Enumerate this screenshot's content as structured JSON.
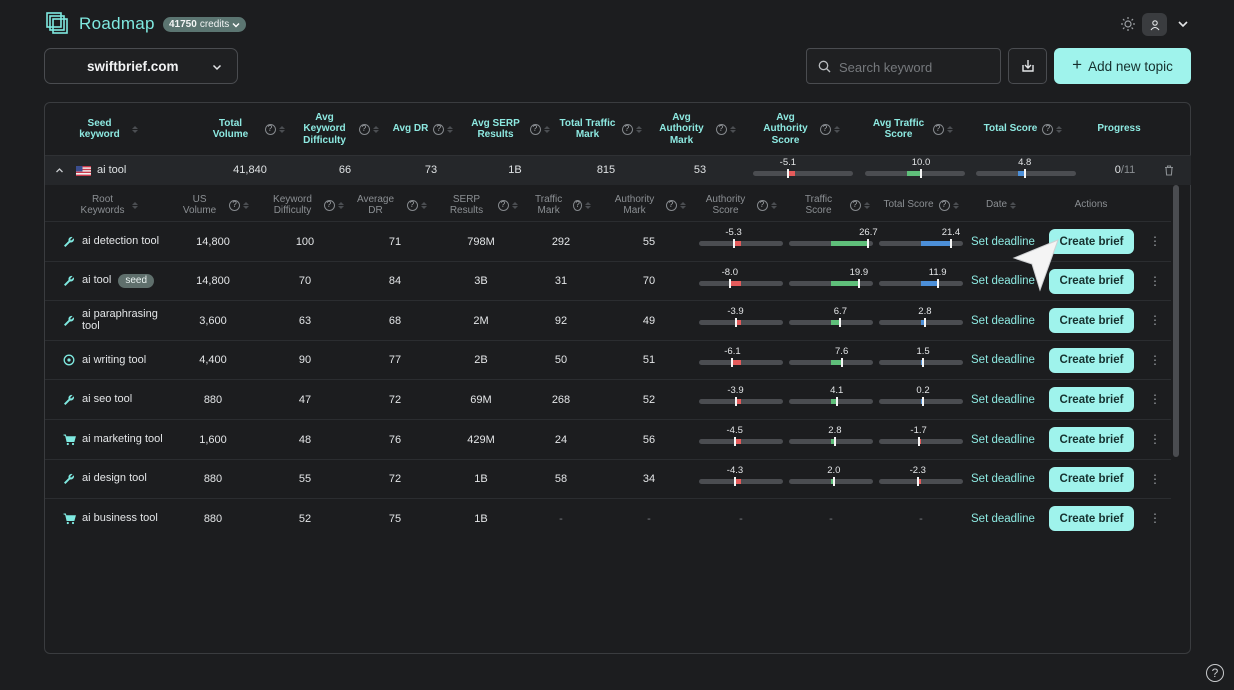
{
  "header": {
    "brand": "Roadmap",
    "credits_value": "41750",
    "credits_unit": "credits",
    "domain": "swiftbrief.com",
    "search_placeholder": "Search keyword",
    "add_topic_label": "Add new topic"
  },
  "columns": [
    {
      "label": "Seed keyword",
      "help": false
    },
    {
      "label": "Total Volume",
      "help": true
    },
    {
      "label": "Avg Keyword Difficulty",
      "help": true
    },
    {
      "label": "Avg DR",
      "help": true
    },
    {
      "label": "Avg SERP Results",
      "help": true
    },
    {
      "label": "Total Traffic Mark",
      "help": true
    },
    {
      "label": "Avg Authority Mark",
      "help": true
    },
    {
      "label": "Avg Authority Score",
      "help": true
    },
    {
      "label": "Avg Traffic Score",
      "help": true
    },
    {
      "label": "Total Score",
      "help": true
    },
    {
      "label": "Progress",
      "help": false
    }
  ],
  "group": {
    "seed": "ai tool",
    "total_volume": "41,840",
    "avg_kd": "66",
    "avg_dr": "73",
    "avg_serp": "1B",
    "traffic_mark": "815",
    "authority_mark": "53",
    "authority_score": -5.1,
    "traffic_score": 10.0,
    "total_score": 4.8,
    "authority_score_label": "-5.1",
    "traffic_score_label": "10.0",
    "total_score_label": "4.8",
    "progress_done": "0",
    "progress_total": "/11"
  },
  "sub_columns": [
    {
      "label": "Root Keywords",
      "help": false
    },
    {
      "label": "US Volume",
      "help": true
    },
    {
      "label": "Keyword Difficulty",
      "help": true
    },
    {
      "label": "Average DR",
      "help": true
    },
    {
      "label": "SERP Results",
      "help": true
    },
    {
      "label": "Traffic Mark",
      "help": true
    },
    {
      "label": "Authority Mark",
      "help": true
    },
    {
      "label": "Authority Score",
      "help": true
    },
    {
      "label": "Traffic Score",
      "help": true
    },
    {
      "label": "Total Score",
      "help": true
    },
    {
      "label": "Date",
      "help": false
    },
    {
      "label": "Actions",
      "help": false
    }
  ],
  "row_actions": {
    "deadline": "Set deadline",
    "brief": "Create brief"
  },
  "colors": {
    "accent": "#9ff3ec",
    "negative": "#e45b5b",
    "traffic": "#5fbf7a",
    "total": "#4c8fd8"
  },
  "rows": [
    {
      "icon": "wrench-icon",
      "keyword": "ai detection tool",
      "seed": false,
      "volume": "14,800",
      "kd": "100",
      "dr": "71",
      "serp": "798M",
      "traffic": "292",
      "authority": "55",
      "a_score": -5.3,
      "t_score": 26.7,
      "s_score": 21.4,
      "a_label": "-5.3",
      "t_label": "26.7",
      "s_label": "21.4"
    },
    {
      "icon": "wrench-icon",
      "keyword": "ai tool",
      "seed": true,
      "seed_label": "seed",
      "volume": "14,800",
      "kd": "70",
      "dr": "84",
      "serp": "3B",
      "traffic": "31",
      "authority": "70",
      "a_score": -8.0,
      "t_score": 19.9,
      "s_score": 11.9,
      "a_label": "-8.0",
      "t_label": "19.9",
      "s_label": "11.9"
    },
    {
      "icon": "wrench-icon",
      "keyword": "ai paraphrasing tool",
      "seed": false,
      "volume": "3,600",
      "kd": "63",
      "dr": "68",
      "serp": "2M",
      "traffic": "92",
      "authority": "49",
      "a_score": -3.9,
      "t_score": 6.7,
      "s_score": 2.8,
      "a_label": "-3.9",
      "t_label": "6.7",
      "s_label": "2.8"
    },
    {
      "icon": "compass-icon",
      "keyword": "ai writing tool",
      "seed": false,
      "volume": "4,400",
      "kd": "90",
      "dr": "77",
      "serp": "2B",
      "traffic": "50",
      "authority": "51",
      "a_score": -6.1,
      "t_score": 7.6,
      "s_score": 1.5,
      "a_label": "-6.1",
      "t_label": "7.6",
      "s_label": "1.5"
    },
    {
      "icon": "wrench-icon",
      "keyword": "ai seo tool",
      "seed": false,
      "volume": "880",
      "kd": "47",
      "dr": "72",
      "serp": "69M",
      "traffic": "268",
      "authority": "52",
      "a_score": -3.9,
      "t_score": 4.1,
      "s_score": 0.2,
      "a_label": "-3.9",
      "t_label": "4.1",
      "s_label": "0.2"
    },
    {
      "icon": "cart-icon",
      "keyword": "ai marketing tool",
      "seed": false,
      "volume": "1,600",
      "kd": "48",
      "dr": "76",
      "serp": "429M",
      "traffic": "24",
      "authority": "56",
      "a_score": -4.5,
      "t_score": 2.8,
      "s_score": -1.7,
      "a_label": "-4.5",
      "t_label": "2.8",
      "s_label": "-1.7"
    },
    {
      "icon": "wrench-icon",
      "keyword": "ai design tool",
      "seed": false,
      "volume": "880",
      "kd": "55",
      "dr": "72",
      "serp": "1B",
      "traffic": "58",
      "authority": "34",
      "a_score": -4.3,
      "t_score": 2.0,
      "s_score": -2.3,
      "a_label": "-4.3",
      "t_label": "2.0",
      "s_label": "-2.3"
    },
    {
      "icon": "cart-icon",
      "keyword": "ai business tool",
      "seed": false,
      "volume": "880",
      "kd": "52",
      "dr": "75",
      "serp": "1B",
      "traffic": "-",
      "authority": "-",
      "a_score": null,
      "t_score": null,
      "s_score": null,
      "a_label": "-",
      "t_label": "-",
      "s_label": "-"
    }
  ]
}
